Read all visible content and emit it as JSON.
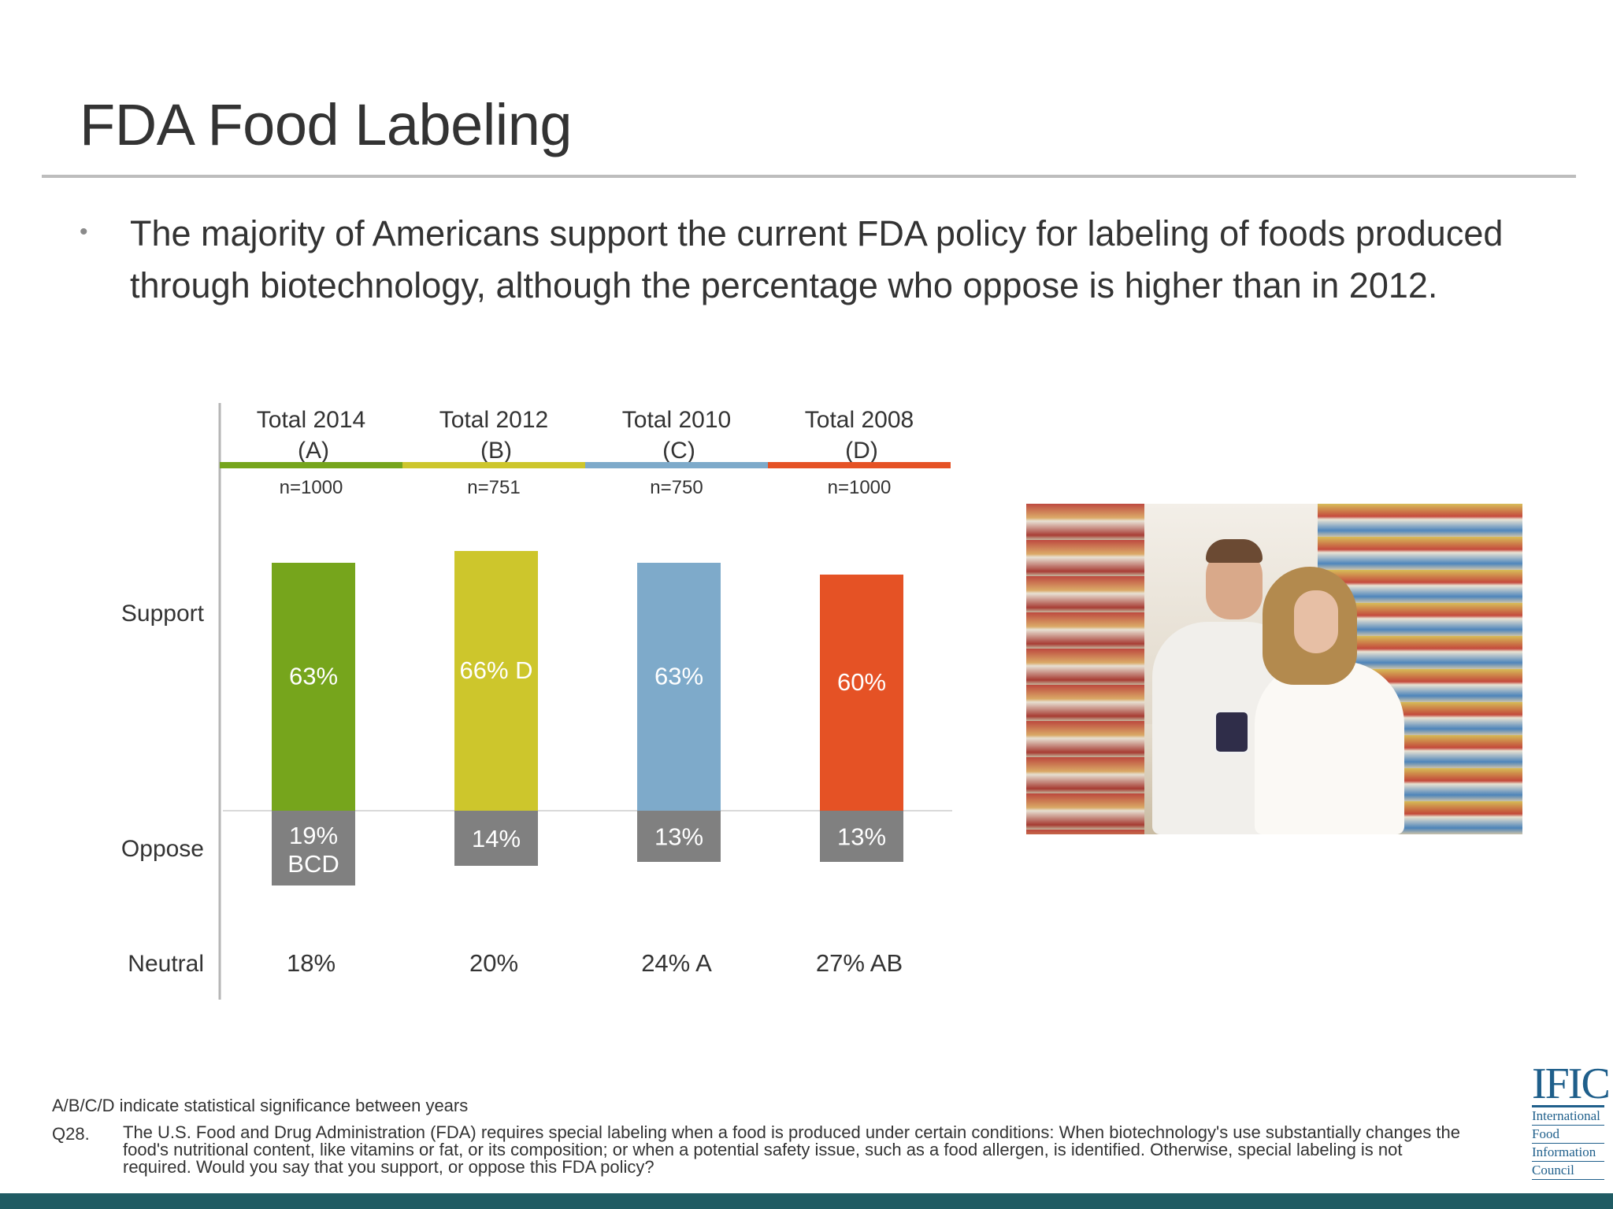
{
  "slide": {
    "title": "FDA Food Labeling",
    "bullet_marker": "•",
    "bullet": "The majority of Americans support the current FDA policy for labeling of foods produced through biotechnology, although the percentage who oppose is higher than in 2012."
  },
  "chart_data": {
    "type": "bar",
    "orientation": "vertical-diverging",
    "categories": [
      {
        "line1": "Total 2014",
        "line2": "(A)",
        "n": "n=1000",
        "color": "#76a51c"
      },
      {
        "line1": "Total 2012",
        "line2": "(B)",
        "n": "n=751",
        "color": "#cdc62c"
      },
      {
        "line1": "Total 2010",
        "line2": "(C)",
        "n": "n=750",
        "color": "#7eaaca"
      },
      {
        "line1": "Total 2008",
        "line2": "(D)",
        "n": "n=1000",
        "color": "#e55225"
      }
    ],
    "row_labels": {
      "support": "Support",
      "oppose": "Oppose",
      "neutral": "Neutral"
    },
    "series": [
      {
        "name": "Support",
        "values": [
          63,
          66,
          63,
          60
        ],
        "labels": [
          "63%",
          "66% D",
          "63%",
          "60%"
        ]
      },
      {
        "name": "Oppose",
        "values": [
          19,
          14,
          13,
          13
        ],
        "labels": [
          "19%\nBCD",
          "14%",
          "13%",
          "13%"
        ],
        "color": "#808080"
      },
      {
        "name": "Neutral",
        "values": [
          18,
          20,
          24,
          27
        ],
        "labels": [
          "18%",
          "20%",
          "24% A",
          "27% AB"
        ]
      }
    ],
    "baseline": 0
  },
  "footnotes": {
    "significance": "A/B/C/D indicate statistical significance between years",
    "question_label": "Q28.",
    "question": "The U.S. Food and Drug Administration (FDA) requires special labeling when a food is produced under certain conditions: When biotechnology's use substantially changes the food's nutritional content, like vitamins or fat, or its composition; or when a potential safety issue, such as a food allergen, is identified. Otherwise, special labeling is not required. Would you say that you support, or oppose this FDA policy?"
  },
  "logo": {
    "mark": "IFIC",
    "lines": [
      "International",
      "Food",
      "Information",
      "Council"
    ]
  }
}
